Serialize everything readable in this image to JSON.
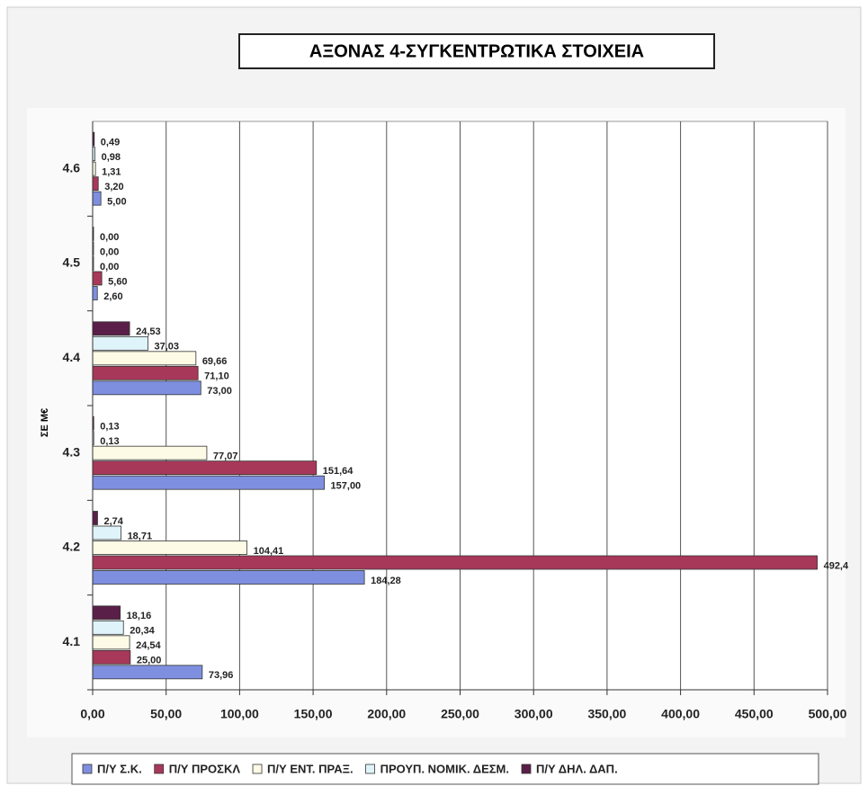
{
  "chart_data": {
    "type": "bar",
    "orientation": "horizontal",
    "title": "ΑΞΟΝΑΣ 4-ΣΥΓΚΕΝΤΡΩΤΙΚΑ ΣΤΟΙΧΕΙΑ",
    "y_label": "ΣΕ Μ€",
    "categories": [
      "4.1",
      "4.2",
      "4.3",
      "4.4",
      "4.5",
      "4.6"
    ],
    "series": [
      {
        "name": "Π/Υ Σ.Κ.",
        "color": "#7f8fe0",
        "values": [
          73.96,
          184.28,
          157.0,
          73.0,
          2.6,
          5.0
        ],
        "value_labels": [
          "73,96",
          "184,28",
          "157,00",
          "73,00",
          "2,60",
          "5,00"
        ]
      },
      {
        "name": "Π/Υ ΠΡΟΣΚΛ",
        "color": "#a8385a",
        "values": [
          25.0,
          492.4,
          151.64,
          71.1,
          5.6,
          3.2
        ],
        "value_labels": [
          "25,00",
          "492,4",
          "151,64",
          "71,10",
          "5,60",
          "3,20"
        ]
      },
      {
        "name": "Π/Υ ΕΝΤ. ΠΡΑΞ.",
        "color": "#fdfbe6",
        "values": [
          24.54,
          104.41,
          77.07,
          69.66,
          0.0,
          1.31
        ],
        "value_labels": [
          "24,54",
          "104,41",
          "77,07",
          "69,66",
          "0,00",
          "1,31"
        ]
      },
      {
        "name": "ΠΡΟΥΠ. ΝΟΜΙΚ. ΔΕΣΜ.",
        "color": "#dff3fb",
        "values": [
          20.34,
          18.71,
          0.13,
          37.03,
          0.0,
          0.98
        ],
        "value_labels": [
          "20,34",
          "18,71",
          "0,13",
          "37,03",
          "0,00",
          "0,98"
        ]
      },
      {
        "name": "Π/Υ ΔΗΛ. ΔΑΠ.",
        "color": "#5a1f48",
        "values": [
          18.16,
          2.74,
          0.13,
          24.53,
          0.0,
          0.49
        ],
        "value_labels": [
          "18,16",
          "2,74",
          "0,13",
          "24,53",
          "0,00",
          "0,49"
        ]
      }
    ],
    "xlim": [
      0,
      500
    ],
    "xticks": [
      {
        "value": 0,
        "label": "0,00"
      },
      {
        "value": 50,
        "label": "50,00"
      },
      {
        "value": 100,
        "label": "100,00"
      },
      {
        "value": 150,
        "label": "150,00"
      },
      {
        "value": 200,
        "label": "200,00"
      },
      {
        "value": 250,
        "label": "250,00"
      },
      {
        "value": 300,
        "label": "300,00"
      },
      {
        "value": 350,
        "label": "350,00"
      },
      {
        "value": 400,
        "label": "400,00"
      },
      {
        "value": 450,
        "label": "450,00"
      },
      {
        "value": 500,
        "label": "500,00"
      }
    ],
    "grid": true,
    "legend": "bottom"
  }
}
